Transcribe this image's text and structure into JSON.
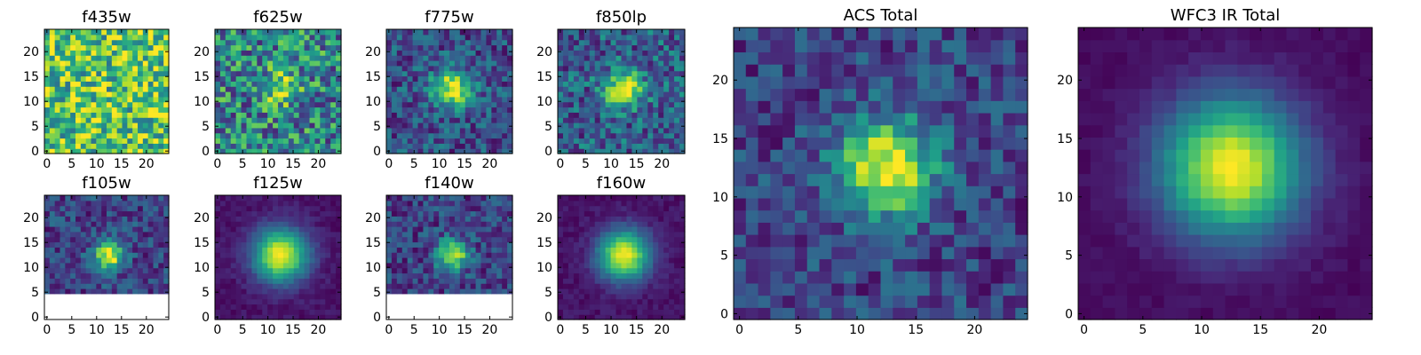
{
  "chart_data": [
    {
      "type": "heatmap",
      "title": "f435w",
      "xticks": [
        "0",
        "5",
        "10",
        "15",
        "20"
      ],
      "yticks": [
        "0",
        "5",
        "10",
        "15",
        "20"
      ],
      "xlim": [
        0,
        24
      ],
      "ylim": [
        0,
        24
      ],
      "grid_size": 24,
      "pattern": "noise",
      "source_center": [
        12,
        12
      ],
      "noise_mean": 0.72,
      "noise_amp": 0.35
    },
    {
      "type": "heatmap",
      "title": "f625w",
      "xticks": [
        "0",
        "5",
        "10",
        "15",
        "20"
      ],
      "yticks": [
        "0",
        "5",
        "10",
        "15",
        "20"
      ],
      "xlim": [
        0,
        24
      ],
      "ylim": [
        0,
        24
      ],
      "grid_size": 24,
      "pattern": "source",
      "source_center": [
        12,
        12
      ],
      "sigma": 2.4,
      "peak": 0.85,
      "background": 0.45,
      "noise_amp": 0.35
    },
    {
      "type": "heatmap",
      "title": "f775w",
      "xticks": [
        "0",
        "5",
        "10",
        "15",
        "20"
      ],
      "yticks": [
        "0",
        "5",
        "10",
        "15",
        "20"
      ],
      "xlim": [
        0,
        24
      ],
      "ylim": [
        0,
        24
      ],
      "grid_size": 24,
      "pattern": "source",
      "source_center": [
        12,
        12
      ],
      "sigma": 2.6,
      "peak": 0.95,
      "background": 0.25,
      "noise_amp": 0.22
    },
    {
      "type": "heatmap",
      "title": "f850lp",
      "xticks": [
        "0",
        "5",
        "10",
        "15",
        "20"
      ],
      "yticks": [
        "0",
        "5",
        "10",
        "15",
        "20"
      ],
      "xlim": [
        0,
        24
      ],
      "ylim": [
        0,
        24
      ],
      "grid_size": 24,
      "pattern": "source",
      "source_center": [
        12,
        12
      ],
      "sigma": 2.6,
      "peak": 0.95,
      "background": 0.3,
      "noise_amp": 0.25
    },
    {
      "type": "heatmap",
      "title": "f105w",
      "xticks": [
        "0",
        "5",
        "10",
        "15",
        "20"
      ],
      "yticks": [
        "0",
        "5",
        "10",
        "15",
        "20"
      ],
      "xlim": [
        0,
        24
      ],
      "ylim": [
        0,
        24
      ],
      "grid_size": 24,
      "pattern": "source",
      "source_center": [
        12,
        12
      ],
      "sigma": 2.0,
      "peak": 1.0,
      "background": 0.2,
      "noise_amp": 0.18,
      "masked_below_y": 5
    },
    {
      "type": "heatmap",
      "title": "f125w",
      "xticks": [
        "0",
        "5",
        "10",
        "15",
        "20"
      ],
      "yticks": [
        "0",
        "5",
        "10",
        "15",
        "20"
      ],
      "xlim": [
        0,
        24
      ],
      "ylim": [
        0,
        24
      ],
      "grid_size": 24,
      "pattern": "source",
      "source_center": [
        12,
        12
      ],
      "sigma": 3.6,
      "peak": 1.0,
      "background": 0.05,
      "noise_amp": 0.05
    },
    {
      "type": "heatmap",
      "title": "f140w",
      "xticks": [
        "0",
        "5",
        "10",
        "15",
        "20"
      ],
      "yticks": [
        "0",
        "5",
        "10",
        "15",
        "20"
      ],
      "xlim": [
        0,
        24
      ],
      "ylim": [
        0,
        24
      ],
      "grid_size": 24,
      "pattern": "source",
      "source_center": [
        12,
        12
      ],
      "sigma": 2.0,
      "peak": 1.0,
      "background": 0.2,
      "noise_amp": 0.18,
      "masked_below_y": 5
    },
    {
      "type": "heatmap",
      "title": "f160w",
      "xticks": [
        "0",
        "5",
        "10",
        "15",
        "20"
      ],
      "yticks": [
        "0",
        "5",
        "10",
        "15",
        "20"
      ],
      "xlim": [
        0,
        24
      ],
      "ylim": [
        0,
        24
      ],
      "grid_size": 24,
      "pattern": "source",
      "source_center": [
        12,
        12
      ],
      "sigma": 3.4,
      "peak": 1.0,
      "background": 0.05,
      "noise_amp": 0.05
    },
    {
      "type": "heatmap",
      "title": "ACS Total",
      "xticks": [
        "0",
        "5",
        "10",
        "15",
        "20"
      ],
      "yticks": [
        "0",
        "5",
        "10",
        "15",
        "20"
      ],
      "xlim": [
        0,
        24
      ],
      "ylim": [
        0,
        24
      ],
      "grid_size": 24,
      "pattern": "source",
      "source_center": [
        12,
        12
      ],
      "sigma": 2.8,
      "peak": 1.0,
      "background": 0.2,
      "noise_amp": 0.18
    },
    {
      "type": "heatmap",
      "title": "WFC3 IR Total",
      "xticks": [
        "0",
        "5",
        "10",
        "15",
        "20"
      ],
      "yticks": [
        "0",
        "5",
        "10",
        "15",
        "20"
      ],
      "xlim": [
        0,
        24
      ],
      "ylim": [
        0,
        24
      ],
      "grid_size": 24,
      "pattern": "source",
      "source_center": [
        12,
        12
      ],
      "sigma": 4.0,
      "peak": 1.0,
      "background": 0.03,
      "noise_amp": 0.03
    }
  ],
  "colormap": "viridis",
  "grid": false
}
